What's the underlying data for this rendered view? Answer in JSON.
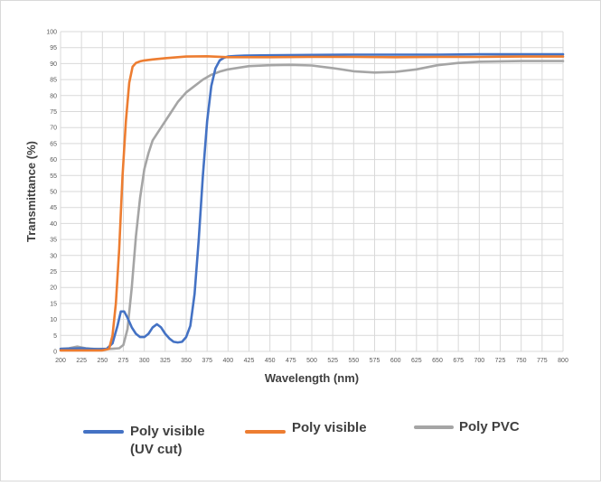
{
  "chart_data": {
    "type": "line",
    "title": "",
    "xlabel": "Wavelength (nm)",
    "ylabel": "Transmittance (%)",
    "xlim": [
      200,
      800
    ],
    "ylim": [
      0,
      100
    ],
    "x_ticks": [
      200,
      225,
      250,
      275,
      300,
      325,
      350,
      375,
      400,
      425,
      450,
      475,
      500,
      525,
      550,
      575,
      600,
      625,
      650,
      675,
      700,
      725,
      750,
      775,
      800
    ],
    "y_ticks": [
      0,
      5,
      10,
      15,
      20,
      25,
      30,
      35,
      40,
      45,
      50,
      55,
      60,
      65,
      70,
      75,
      80,
      85,
      90,
      95,
      100
    ],
    "grid": true,
    "legend_position": "bottom",
    "series": [
      {
        "name": "Poly visible (UV cut)",
        "legend_lines": [
          "Poly visible",
          "(UV cut)"
        ],
        "color": "#4472C4",
        "x": [
          200,
          215,
          225,
          235,
          245,
          255,
          262,
          268,
          272,
          276,
          280,
          285,
          290,
          295,
          300,
          305,
          310,
          315,
          320,
          325,
          330,
          335,
          340,
          345,
          350,
          355,
          360,
          365,
          370,
          375,
          380,
          385,
          390,
          395,
          400,
          410,
          420,
          450,
          500,
          550,
          600,
          650,
          700,
          750,
          800
        ],
        "y": [
          0.8,
          0.9,
          1.0,
          0.8,
          0.7,
          0.8,
          2.5,
          8.0,
          12.5,
          12.5,
          10.5,
          7.5,
          5.5,
          4.5,
          4.5,
          5.5,
          7.5,
          8.5,
          7.5,
          5.5,
          4.0,
          3.0,
          2.8,
          3.0,
          4.5,
          8.0,
          18.0,
          35.0,
          55.0,
          72.0,
          83.0,
          88.5,
          91.0,
          91.8,
          92.2,
          92.4,
          92.5,
          92.6,
          92.7,
          92.8,
          92.8,
          92.8,
          92.9,
          92.9,
          92.9
        ]
      },
      {
        "name": "Poly visible",
        "legend_lines": [
          "Poly visible"
        ],
        "color": "#ED7D31",
        "x": [
          200,
          225,
          250,
          258,
          262,
          266,
          270,
          274,
          278,
          282,
          286,
          290,
          295,
          300,
          310,
          325,
          350,
          375,
          400,
          450,
          500,
          550,
          600,
          650,
          700,
          750,
          800
        ],
        "y": [
          0.3,
          0.3,
          0.3,
          0.8,
          5.0,
          15.0,
          32.0,
          55.0,
          72.0,
          84.0,
          89.0,
          90.2,
          90.7,
          91.0,
          91.3,
          91.7,
          92.2,
          92.3,
          92.0,
          92.0,
          92.1,
          92.1,
          92.0,
          92.1,
          92.1,
          92.2,
          92.2
        ]
      },
      {
        "name": "Poly PVC",
        "legend_lines": [
          "Poly PVC"
        ],
        "color": "#A5A5A5",
        "x": [
          200,
          210,
          220,
          230,
          240,
          250,
          260,
          270,
          275,
          280,
          285,
          290,
          295,
          300,
          305,
          310,
          320,
          330,
          340,
          350,
          360,
          370,
          380,
          390,
          400,
          425,
          450,
          475,
          500,
          525,
          550,
          575,
          600,
          625,
          650,
          675,
          700,
          750,
          800
        ],
        "y": [
          0.8,
          1.0,
          1.5,
          1.0,
          0.8,
          0.8,
          0.8,
          1.0,
          2.0,
          7.0,
          20.0,
          36.0,
          48.0,
          57.0,
          62.0,
          66.0,
          70.0,
          74.0,
          78.0,
          81.0,
          83.0,
          85.0,
          86.5,
          87.5,
          88.2,
          89.2,
          89.5,
          89.6,
          89.4,
          88.6,
          87.6,
          87.2,
          87.4,
          88.2,
          89.5,
          90.2,
          90.6,
          90.8,
          90.8
        ]
      }
    ]
  }
}
